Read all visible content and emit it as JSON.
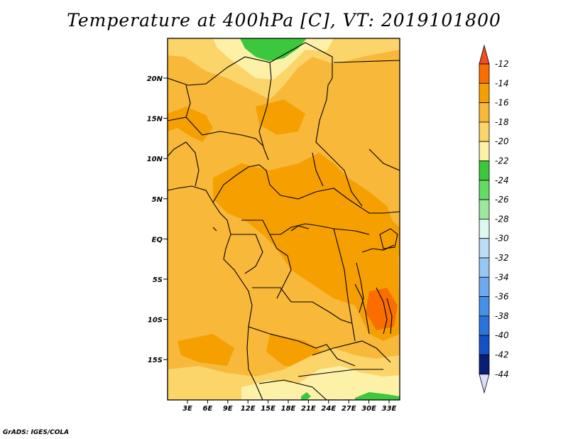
{
  "title": "Temperature at 400hPa [C], VT: 2019101800",
  "footer": "GrADS: IGES/COLA",
  "map": {
    "lat_labels": [
      "20N",
      "15N",
      "10N",
      "5N",
      "EQ",
      "5S",
      "10S",
      "15S"
    ],
    "lon_labels": [
      "3E",
      "6E",
      "9E",
      "12E",
      "15E",
      "18E",
      "21E",
      "24E",
      "27E",
      "30E",
      "33E"
    ]
  },
  "colorbar": {
    "labels": [
      "-12",
      "-14",
      "-16",
      "-18",
      "-20",
      "-22",
      "-24",
      "-26",
      "-28",
      "-30",
      "-32",
      "-34",
      "-36",
      "-38",
      "-40",
      "-42",
      "-44"
    ],
    "colors": [
      "#f0501e",
      "#fa6e00",
      "#f5a000",
      "#f8b83a",
      "#fbd46a",
      "#fdf1a8",
      "#3cc83c",
      "#64dc64",
      "#9ee89e",
      "#dcf8f0",
      "#bcdcf8",
      "#96c8f5",
      "#6eaaf0",
      "#4690e8",
      "#2a72dc",
      "#1450c8",
      "#0a1e78",
      "#dcdcf8"
    ]
  }
}
